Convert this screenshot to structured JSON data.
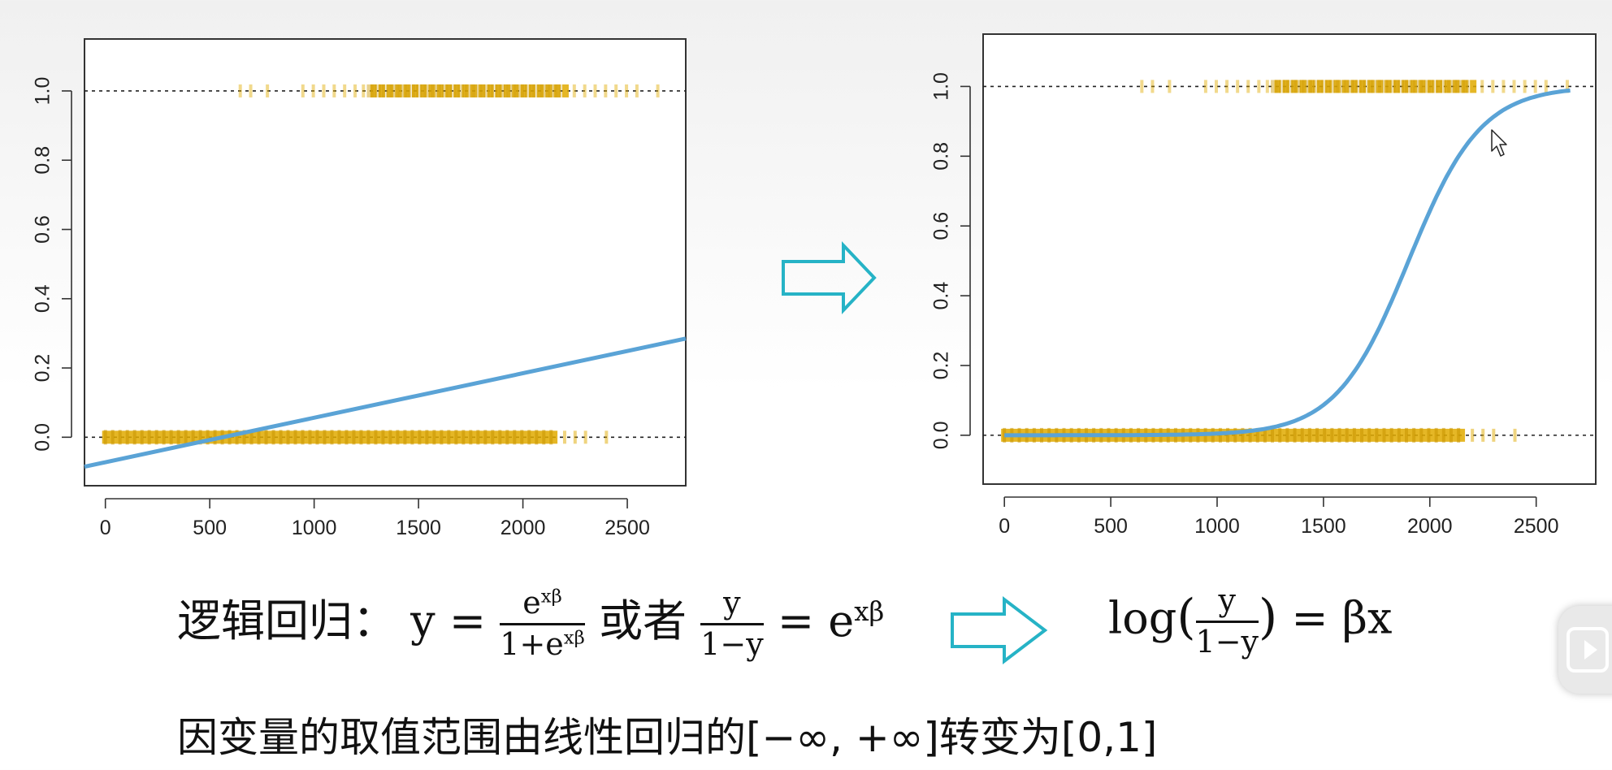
{
  "chart_data": [
    {
      "type": "scatter",
      "title": "",
      "xlabel": "",
      "ylabel": "",
      "xlim": [
        -100,
        2780
      ],
      "ylim": [
        -0.14,
        1.15
      ],
      "x_ticks": [
        "0",
        "500",
        "1000",
        "1500",
        "2000",
        "2500"
      ],
      "x_tick_values": [
        0,
        500,
        1000,
        1500,
        2000,
        2500
      ],
      "y_ticks": [
        "0.0",
        "0.2",
        "0.4",
        "0.6",
        "0.8",
        "1.0"
      ],
      "y_tick_values": [
        0.0,
        0.2,
        0.4,
        0.6,
        0.8,
        1.0
      ],
      "reference_lines_y": [
        0,
        1
      ],
      "points_y1": [
        650,
        700,
        780,
        950,
        1000,
        1050,
        1100,
        1150,
        1200,
        1240,
        1280,
        1320,
        1360,
        1400,
        1440,
        1480,
        1520,
        1560,
        1600,
        1640,
        1680,
        1720,
        1760,
        1800,
        1840,
        1880,
        1920,
        1960,
        2000,
        2040,
        2080,
        2120,
        2160,
        2200,
        2250,
        2300,
        2350,
        2400,
        2450,
        2500,
        2550,
        2650
      ],
      "points_y0_range": [
        0,
        2150
      ],
      "points_y0_sparse": [
        2200,
        2250,
        2300,
        2400
      ],
      "fit": {
        "type": "line",
        "x": [
          -100,
          2780
        ],
        "y": [
          -0.085,
          0.285
        ]
      }
    },
    {
      "type": "scatter",
      "title": "",
      "xlabel": "",
      "ylabel": "",
      "xlim": [
        -100,
        2780
      ],
      "ylim": [
        -0.14,
        1.15
      ],
      "x_ticks": [
        "0",
        "500",
        "1000",
        "1500",
        "2000",
        "2500"
      ],
      "x_tick_values": [
        0,
        500,
        1000,
        1500,
        2000,
        2500
      ],
      "y_ticks": [
        "0.0",
        "0.2",
        "0.4",
        "0.6",
        "0.8",
        "1.0"
      ],
      "y_tick_values": [
        0.0,
        0.2,
        0.4,
        0.6,
        0.8,
        1.0
      ],
      "reference_lines_y": [
        0,
        1
      ],
      "points_y1": [
        650,
        700,
        780,
        950,
        1000,
        1050,
        1100,
        1150,
        1200,
        1240,
        1280,
        1320,
        1360,
        1400,
        1440,
        1480,
        1520,
        1560,
        1600,
        1640,
        1680,
        1720,
        1760,
        1800,
        1840,
        1880,
        1920,
        1960,
        2000,
        2040,
        2080,
        2120,
        2160,
        2200,
        2250,
        2300,
        2350,
        2400,
        2450,
        2500,
        2550,
        2650
      ],
      "points_y0_range": [
        0,
        2150
      ],
      "points_y0_sparse": [
        2200,
        2250,
        2300,
        2400
      ],
      "fit": {
        "type": "logistic",
        "x_range": [
          0,
          2660
        ],
        "midpoint": 1900,
        "scale": 170
      }
    }
  ],
  "colors": {
    "points": "#e0aa00",
    "fit_line": "#5aa3d6",
    "arrow": "#26b3c6",
    "text": "#111111"
  },
  "formula": {
    "label": "逻辑回归：",
    "y_equals": "y =",
    "frac1_num": "e",
    "frac1_num_sup": "xβ",
    "frac1_den": "1+e",
    "frac1_den_sup": "xβ",
    "or": "或者",
    "frac2_num": "y",
    "frac2_den": "1−y",
    "equals_e": "= e",
    "equals_e_sup": "xβ",
    "log": "log",
    "paren_open": "(",
    "paren_close": ")",
    "frac3_num": "y",
    "frac3_den": "1−y",
    "rhs": "= βx"
  },
  "caption": "因变量的取值范围由线性回归的[−∞, +∞]转变为[0,1]",
  "icons": {
    "transform_arrow": "right-arrow-outline-icon",
    "formula_arrow": "right-arrow-outline-icon",
    "cursor": "mouse-pointer-icon",
    "side_button": "play-icon"
  }
}
